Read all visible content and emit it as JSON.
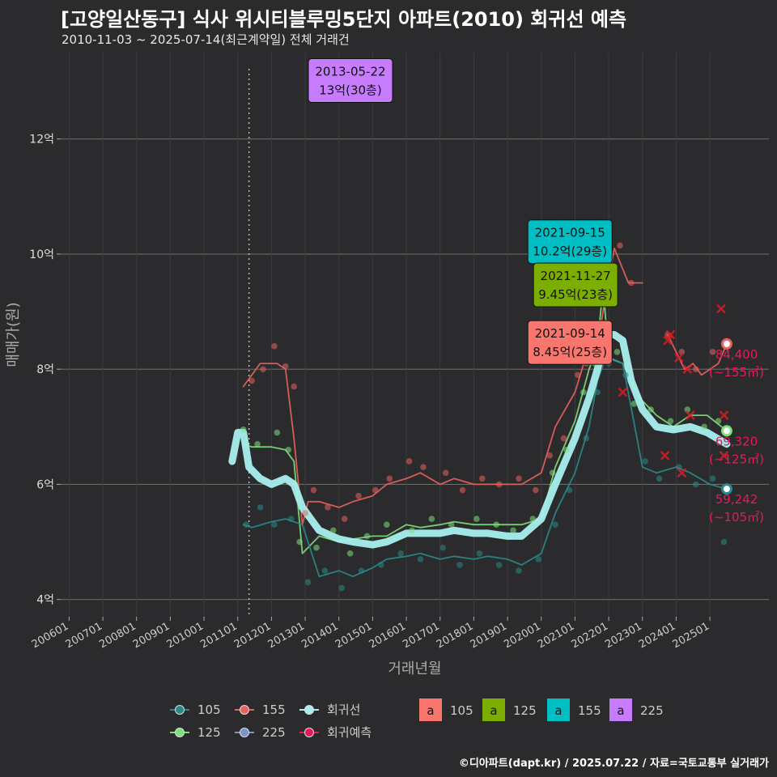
{
  "title": "[고양일산동구] 식사 위시티블루밍5단지 아파트(2010) 회귀선 예측",
  "subtitle": "2010-11-03 ~ 2025-07-14(최근계약일) 전체 거래건",
  "footer": "©디아파트(dapt.kr) / 2025.07.22 / 자료=국토교통부 실거래가",
  "colors": {
    "105": "#2a8a8a",
    "125": "#7ee07a",
    "155": "#e8625e",
    "225": "#7b93c9",
    "regression": "#a8f0ee",
    "forecast": "#e8185c",
    "label105": "#f8766d",
    "label125": "#7cae00",
    "label155": "#00bfc4",
    "label225": "#c77cff"
  },
  "chart_data": {
    "type": "line",
    "xlabel": "거래년월",
    "ylabel": "매매가(원)",
    "x_range": [
      "2005-10",
      "2026-10"
    ],
    "ylim": [
      3.7,
      13.5
    ],
    "y_ticks": [
      {
        "v": 4,
        "label": "4억"
      },
      {
        "v": 6,
        "label": "6억"
      },
      {
        "v": 8,
        "label": "8억"
      },
      {
        "v": 10,
        "label": "10억"
      },
      {
        "v": 12,
        "label": "12억"
      }
    ],
    "x_ticks": [
      "200601",
      "200701",
      "200801",
      "200901",
      "201001",
      "201101",
      "201201",
      "201301",
      "201401",
      "201501",
      "201601",
      "201701",
      "201801",
      "201901",
      "202001",
      "202101",
      "202201",
      "202301",
      "202401",
      "202501"
    ],
    "grid": true,
    "vline_date": "2011-05",
    "series": [
      {
        "name": "155",
        "key": "155",
        "points": [
          [
            "2011-03",
            7.7
          ],
          [
            "2011-06",
            7.9
          ],
          [
            "2011-09",
            8.1
          ],
          [
            "2012-03",
            8.1
          ],
          [
            "2012-06",
            8.0
          ],
          [
            "2012-09",
            6.8
          ],
          [
            "2012-12",
            5.3
          ],
          [
            "2013-02",
            5.7
          ],
          [
            "2013-06",
            5.7
          ],
          [
            "2014-01",
            5.6
          ],
          [
            "2014-06",
            5.7
          ],
          [
            "2015-01",
            5.8
          ],
          [
            "2015-06",
            6.0
          ],
          [
            "2016-01",
            6.1
          ],
          [
            "2016-06",
            6.2
          ],
          [
            "2017-01",
            6.0
          ],
          [
            "2017-06",
            6.1
          ],
          [
            "2018-01",
            6.0
          ],
          [
            "2018-06",
            6.0
          ],
          [
            "2019-01",
            6.0
          ],
          [
            "2019-06",
            6.0
          ],
          [
            "2020-01",
            6.2
          ],
          [
            "2020-06",
            7.0
          ],
          [
            "2021-01",
            7.6
          ],
          [
            "2021-06",
            8.4
          ],
          [
            "2021-09",
            8.4
          ],
          [
            "2021-12",
            9.3
          ],
          [
            "2022-03",
            10.1
          ],
          [
            "2022-08",
            9.5
          ],
          [
            "2023-01",
            9.5
          ]
        ]
      },
      {
        "name": "155",
        "key": "155",
        "points": [
          [
            "2023-10",
            8.6
          ],
          [
            "2024-01",
            8.3
          ],
          [
            "2024-04",
            8.0
          ],
          [
            "2024-07",
            8.1
          ],
          [
            "2024-10",
            7.9
          ],
          [
            "2025-01",
            8.0
          ],
          [
            "2025-04",
            8.1
          ],
          [
            "2025-07",
            8.44
          ]
        ]
      },
      {
        "name": "125",
        "key": "125",
        "points": [
          [
            "2011-03",
            6.7
          ],
          [
            "2011-06",
            6.65
          ],
          [
            "2012-01",
            6.65
          ],
          [
            "2012-06",
            6.6
          ],
          [
            "2012-09",
            6.4
          ],
          [
            "2012-12",
            4.8
          ],
          [
            "2013-06",
            5.1
          ],
          [
            "2014-01",
            5.0
          ],
          [
            "2014-06",
            5.05
          ],
          [
            "2015-01",
            5.1
          ],
          [
            "2015-06",
            5.1
          ],
          [
            "2016-01",
            5.3
          ],
          [
            "2016-06",
            5.25
          ],
          [
            "2017-01",
            5.3
          ],
          [
            "2017-06",
            5.35
          ],
          [
            "2018-01",
            5.3
          ],
          [
            "2018-06",
            5.3
          ],
          [
            "2019-01",
            5.3
          ],
          [
            "2019-06",
            5.3
          ],
          [
            "2020-01",
            5.4
          ],
          [
            "2020-06",
            6.3
          ],
          [
            "2021-01",
            7.1
          ],
          [
            "2021-06",
            8.0
          ],
          [
            "2021-09",
            8.4
          ],
          [
            "2021-11",
            9.45
          ],
          [
            "2022-01",
            8.2
          ],
          [
            "2022-06",
            8.1
          ],
          [
            "2022-12",
            7.5
          ],
          [
            "2023-06",
            7.2
          ],
          [
            "2023-12",
            7.0
          ],
          [
            "2024-06",
            7.2
          ],
          [
            "2024-12",
            7.2
          ],
          [
            "2025-07",
            6.93
          ]
        ]
      },
      {
        "name": "105",
        "key": "105",
        "points": [
          [
            "2011-03",
            5.3
          ],
          [
            "2011-06",
            5.25
          ],
          [
            "2012-01",
            5.35
          ],
          [
            "2012-06",
            5.4
          ],
          [
            "2012-12",
            5.3
          ],
          [
            "2013-06",
            4.4
          ],
          [
            "2014-01",
            4.5
          ],
          [
            "2014-06",
            4.4
          ],
          [
            "2015-01",
            4.55
          ],
          [
            "2015-06",
            4.7
          ],
          [
            "2016-01",
            4.75
          ],
          [
            "2016-06",
            4.8
          ],
          [
            "2017-01",
            4.7
          ],
          [
            "2017-06",
            4.75
          ],
          [
            "2018-01",
            4.7
          ],
          [
            "2018-06",
            4.75
          ],
          [
            "2019-01",
            4.7
          ],
          [
            "2019-06",
            4.6
          ],
          [
            "2020-01",
            4.8
          ],
          [
            "2020-06",
            5.5
          ],
          [
            "2021-01",
            6.2
          ],
          [
            "2021-06",
            7.0
          ],
          [
            "2021-09",
            7.8
          ],
          [
            "2021-12",
            8.2
          ],
          [
            "2022-06",
            8.1
          ],
          [
            "2023-01",
            6.3
          ],
          [
            "2023-06",
            6.2
          ],
          [
            "2024-01",
            6.3
          ],
          [
            "2024-06",
            6.2
          ],
          [
            "2025-01",
            6.0
          ],
          [
            "2025-07",
            5.92
          ]
        ]
      },
      {
        "name": "225",
        "key": "225",
        "points": [
          [
            "2013-05",
            13.0
          ],
          [
            "2013-07",
            13.0
          ]
        ]
      },
      {
        "name": "회귀선",
        "key": "regression",
        "points": [
          [
            "2010-11",
            6.4
          ],
          [
            "2011-01",
            6.9
          ],
          [
            "2011-03",
            6.9
          ],
          [
            "2011-05",
            6.3
          ],
          [
            "2011-09",
            6.1
          ],
          [
            "2012-01",
            6.0
          ],
          [
            "2012-06",
            6.1
          ],
          [
            "2012-09",
            6.0
          ],
          [
            "2012-12",
            5.6
          ],
          [
            "2013-03",
            5.4
          ],
          [
            "2013-06",
            5.2
          ],
          [
            "2014-01",
            5.05
          ],
          [
            "2014-06",
            5.0
          ],
          [
            "2015-01",
            4.95
          ],
          [
            "2015-06",
            5.0
          ],
          [
            "2016-01",
            5.15
          ],
          [
            "2016-06",
            5.15
          ],
          [
            "2017-01",
            5.15
          ],
          [
            "2017-06",
            5.2
          ],
          [
            "2018-01",
            5.15
          ],
          [
            "2018-06",
            5.15
          ],
          [
            "2019-01",
            5.1
          ],
          [
            "2019-06",
            5.1
          ],
          [
            "2020-01",
            5.4
          ],
          [
            "2020-06",
            6.0
          ],
          [
            "2021-01",
            6.8
          ],
          [
            "2021-06",
            7.5
          ],
          [
            "2021-09",
            8.0
          ],
          [
            "2021-12",
            8.6
          ],
          [
            "2022-03",
            8.6
          ],
          [
            "2022-06",
            8.5
          ],
          [
            "2022-09",
            7.8
          ],
          [
            "2023-01",
            7.3
          ],
          [
            "2023-06",
            7.0
          ],
          [
            "2023-12",
            6.95
          ],
          [
            "2024-06",
            7.0
          ],
          [
            "2024-12",
            6.9
          ],
          [
            "2025-07",
            6.7
          ]
        ]
      }
    ],
    "scatter": [
      {
        "key": "155",
        "points": [
          [
            "2011-06",
            7.8
          ],
          [
            "2011-10",
            8.0
          ],
          [
            "2012-02",
            8.4
          ],
          [
            "2012-06",
            8.05
          ],
          [
            "2012-09",
            7.7
          ],
          [
            "2013-01",
            5.5
          ],
          [
            "2013-04",
            5.9
          ],
          [
            "2013-09",
            5.6
          ],
          [
            "2014-03",
            5.4
          ],
          [
            "2014-08",
            5.8
          ],
          [
            "2015-02",
            5.9
          ],
          [
            "2015-07",
            6.1
          ],
          [
            "2016-02",
            6.4
          ],
          [
            "2016-07",
            6.3
          ],
          [
            "2017-03",
            6.2
          ],
          [
            "2017-09",
            5.9
          ],
          [
            "2018-04",
            6.1
          ],
          [
            "2018-10",
            6.0
          ],
          [
            "2019-05",
            6.1
          ],
          [
            "2019-11",
            5.9
          ],
          [
            "2020-04",
            6.5
          ],
          [
            "2020-09",
            6.8
          ],
          [
            "2021-02",
            7.9
          ],
          [
            "2021-05",
            8.1
          ],
          [
            "2021-09",
            8.45
          ],
          [
            "2022-02",
            9.8
          ],
          [
            "2022-05",
            10.15
          ],
          [
            "2022-09",
            9.5
          ],
          [
            "2023-10",
            8.6
          ],
          [
            "2024-03",
            8.3
          ],
          [
            "2024-08",
            8.0
          ],
          [
            "2025-02",
            8.3
          ]
        ]
      },
      {
        "key": "125",
        "points": [
          [
            "2011-03",
            6.95
          ],
          [
            "2011-08",
            6.7
          ],
          [
            "2012-03",
            6.9
          ],
          [
            "2012-07",
            6.6
          ],
          [
            "2012-11",
            5.0
          ],
          [
            "2013-05",
            4.9
          ],
          [
            "2013-11",
            5.2
          ],
          [
            "2014-05",
            4.8
          ],
          [
            "2014-11",
            5.1
          ],
          [
            "2015-06",
            5.3
          ],
          [
            "2016-03",
            5.2
          ],
          [
            "2016-10",
            5.4
          ],
          [
            "2017-05",
            5.3
          ],
          [
            "2018-02",
            5.4
          ],
          [
            "2018-09",
            5.3
          ],
          [
            "2019-03",
            5.2
          ],
          [
            "2019-10",
            5.4
          ],
          [
            "2020-05",
            6.2
          ],
          [
            "2020-10",
            6.6
          ],
          [
            "2021-04",
            7.6
          ],
          [
            "2021-08",
            8.1
          ],
          [
            "2021-11",
            9.45
          ],
          [
            "2022-04",
            8.3
          ],
          [
            "2022-10",
            7.4
          ],
          [
            "2023-04",
            7.3
          ],
          [
            "2023-11",
            7.1
          ],
          [
            "2024-05",
            7.3
          ],
          [
            "2024-11",
            7.0
          ],
          [
            "2025-04",
            7.1
          ]
        ]
      },
      {
        "key": "105",
        "points": [
          [
            "2011-04",
            5.3
          ],
          [
            "2011-09",
            5.6
          ],
          [
            "2012-02",
            5.3
          ],
          [
            "2012-08",
            5.4
          ],
          [
            "2013-02",
            4.3
          ],
          [
            "2013-08",
            4.5
          ],
          [
            "2014-02",
            4.2
          ],
          [
            "2014-09",
            4.5
          ],
          [
            "2015-04",
            4.6
          ],
          [
            "2015-11",
            4.8
          ],
          [
            "2016-06",
            4.7
          ],
          [
            "2017-02",
            4.9
          ],
          [
            "2017-08",
            4.6
          ],
          [
            "2018-03",
            4.8
          ],
          [
            "2018-10",
            4.6
          ],
          [
            "2019-05",
            4.5
          ],
          [
            "2019-12",
            4.7
          ],
          [
            "2020-06",
            5.3
          ],
          [
            "2020-11",
            5.9
          ],
          [
            "2021-05",
            6.8
          ],
          [
            "2021-09",
            7.6
          ],
          [
            "2022-01",
            8.1
          ],
          [
            "2022-07",
            7.9
          ],
          [
            "2023-02",
            6.4
          ],
          [
            "2023-07",
            6.1
          ],
          [
            "2024-02",
            6.3
          ],
          [
            "2024-08",
            6.0
          ],
          [
            "2025-02",
            6.1
          ],
          [
            "2025-06",
            5.0
          ]
        ]
      }
    ],
    "forecast_markers": [
      [
        "2023-10",
        8.5
      ],
      [
        "2023-11",
        8.6
      ],
      [
        "2024-02",
        8.2
      ],
      [
        "2024-05",
        8.0
      ],
      [
        "2025-05",
        9.05
      ],
      [
        "2025-06",
        7.2
      ],
      [
        "2025-06",
        6.5
      ],
      [
        "2024-03",
        6.2
      ],
      [
        "2023-09",
        6.5
      ],
      [
        "2022-06",
        7.6
      ],
      [
        "2024-06",
        7.2
      ]
    ],
    "end_points": [
      {
        "key": "155",
        "date": "2025-07",
        "value": 8.44
      },
      {
        "key": "125",
        "date": "2025-07",
        "value": 6.93
      },
      {
        "key": "105",
        "date": "2025-07",
        "value": 5.92
      }
    ],
    "forecast_labels": [
      {
        "line1": "84,400",
        "line2": "(~155㎡)",
        "value": 8.44
      },
      {
        "line1": "69,320",
        "line2": "(~125㎡)",
        "value": 6.93
      },
      {
        "line1": "59,242",
        "line2": "(~105㎡)",
        "value": 5.92
      }
    ],
    "annotations": [
      {
        "key": "225",
        "date_text": "2013-05-22",
        "price_text": "13억(30층)",
        "date": "2013-05",
        "value": 13.0,
        "anchor": "left"
      },
      {
        "key": "155",
        "date_text": "2021-09-15",
        "price_text": "10.2억(29층)",
        "date": "2021-09",
        "value": 10.2,
        "anchor": "right"
      },
      {
        "key": "125",
        "date_text": "2021-11-27",
        "price_text": "9.45억(23층)",
        "date": "2021-11",
        "value": 9.45,
        "anchor": "right"
      },
      {
        "key": "105",
        "date_text": "2021-09-14",
        "price_text": "8.45억(25층)",
        "date": "2021-09",
        "value": 8.45,
        "anchor": "right"
      }
    ],
    "legend": {
      "placement": "bottom",
      "lines": [
        {
          "key": "105",
          "label": "105"
        },
        {
          "key": "155",
          "label": "155"
        },
        {
          "key": "regression",
          "label": "회귀선"
        },
        {
          "key": "125",
          "label": "125"
        },
        {
          "key": "225",
          "label": "225"
        },
        {
          "key": "forecast",
          "label": "회귀예측"
        }
      ],
      "boxes": [
        {
          "key": "label105",
          "glyph": "a",
          "label": "105"
        },
        {
          "key": "label125",
          "glyph": "a",
          "label": "125"
        },
        {
          "key": "label155",
          "glyph": "a",
          "label": "155"
        },
        {
          "key": "label225",
          "glyph": "a",
          "label": "225"
        }
      ]
    }
  }
}
